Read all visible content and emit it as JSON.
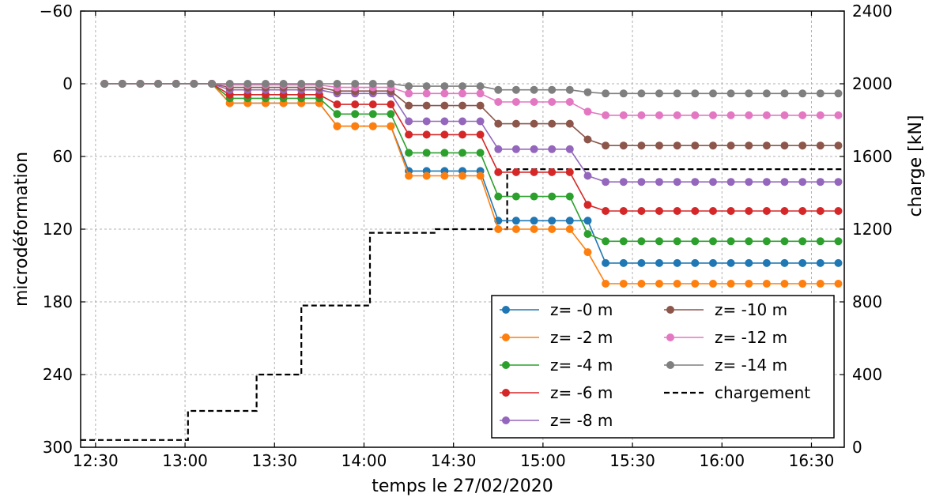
{
  "chart_data": {
    "type": "line",
    "xlabel": "temps le 27/02/2020",
    "ylabel": "microdéformation",
    "ylabel_right": "charge [kN]",
    "x_tick_labels": [
      "12:30",
      "13:00",
      "13:30",
      "14:00",
      "14:30",
      "15:00",
      "15:30",
      "16:00",
      "16:30"
    ],
    "x_tick_minutes": [
      750,
      780,
      810,
      840,
      870,
      900,
      930,
      960,
      990
    ],
    "xlim_minutes": [
      745,
      1001
    ],
    "y_left_ticks": [
      -60,
      0,
      60,
      120,
      180,
      240,
      300
    ],
    "ylim_left": [
      -60,
      300
    ],
    "y_left_inverted": true,
    "y_right_ticks": [
      0,
      400,
      800,
      1200,
      1600,
      2000,
      2400
    ],
    "ylim_right": [
      0,
      2400
    ],
    "grid": true,
    "legend_position": "lower-right",
    "legend_columns": 2,
    "x_minutes": [
      753,
      759,
      765,
      771,
      777,
      783,
      789,
      795,
      801,
      807,
      813,
      819,
      825,
      831,
      837,
      843,
      849,
      855,
      861,
      867,
      873,
      879,
      885,
      891,
      897,
      903,
      909,
      915,
      921,
      927,
      933,
      939,
      945,
      951,
      957,
      963,
      969,
      975,
      981,
      987,
      993,
      999
    ],
    "levels_by_step": {
      "z= -0 m": [
        0,
        16,
        35,
        72,
        113,
        148
      ],
      "z= -2 m": [
        0,
        16,
        35,
        76,
        120,
        165
      ],
      "z= -4 m": [
        0,
        12,
        25,
        57,
        93,
        130
      ],
      "z= -6 m": [
        0,
        9,
        17,
        42,
        73,
        105
      ],
      "z= -8 m": [
        0,
        5,
        8,
        31,
        54,
        81
      ],
      "z= -10 m": [
        0,
        3,
        6,
        18,
        33,
        51
      ],
      "z= -12 m": [
        0,
        1,
        3,
        8,
        15,
        26
      ],
      "z= -14 m": [
        0,
        0,
        0,
        2,
        5,
        8
      ]
    },
    "series": [
      {
        "name": "z= -0 m",
        "color": "#1f77b4",
        "values": [
          0,
          0,
          0,
          0,
          0,
          0,
          0,
          16,
          16,
          16,
          16,
          16,
          16,
          35,
          35,
          35,
          35,
          72,
          72,
          72,
          72,
          72,
          113,
          113,
          113,
          113,
          113,
          113,
          148,
          148,
          148,
          148,
          148,
          148,
          148,
          148,
          148,
          148,
          148,
          148,
          148,
          148
        ]
      },
      {
        "name": "z= -2 m",
        "color": "#ff7f0e",
        "values": [
          0,
          0,
          0,
          0,
          0,
          0,
          0,
          16,
          16,
          16,
          16,
          16,
          16,
          35,
          35,
          35,
          35,
          76,
          76,
          76,
          76,
          76,
          120,
          120,
          120,
          120,
          120,
          139,
          165,
          165,
          165,
          165,
          165,
          165,
          165,
          165,
          165,
          165,
          165,
          165,
          165,
          165
        ]
      },
      {
        "name": "z= -4 m",
        "color": "#2ca02c",
        "values": [
          0,
          0,
          0,
          0,
          0,
          0,
          0,
          12,
          12,
          12,
          12,
          12,
          12,
          25,
          25,
          25,
          25,
          57,
          57,
          57,
          57,
          57,
          93,
          93,
          93,
          93,
          93,
          124,
          130,
          130,
          130,
          130,
          130,
          130,
          130,
          130,
          130,
          130,
          130,
          130,
          130,
          130
        ]
      },
      {
        "name": "z= -6 m",
        "color": "#d62728",
        "values": [
          0,
          0,
          0,
          0,
          0,
          0,
          0,
          9,
          9,
          9,
          9,
          9,
          9,
          17,
          17,
          17,
          17,
          42,
          42,
          42,
          42,
          42,
          73,
          73,
          73,
          73,
          73,
          100,
          105,
          105,
          105,
          105,
          105,
          105,
          105,
          105,
          105,
          105,
          105,
          105,
          105,
          105
        ]
      },
      {
        "name": "z= -8 m",
        "color": "#9467bd",
        "values": [
          0,
          0,
          0,
          0,
          0,
          0,
          0,
          5,
          5,
          5,
          5,
          5,
          5,
          8,
          8,
          8,
          8,
          31,
          31,
          31,
          31,
          31,
          54,
          54,
          54,
          54,
          54,
          76,
          81,
          81,
          81,
          81,
          81,
          81,
          81,
          81,
          81,
          81,
          81,
          81,
          81,
          81
        ]
      },
      {
        "name": "z= -10 m",
        "color": "#8c564b",
        "values": [
          0,
          0,
          0,
          0,
          0,
          0,
          0,
          3,
          3,
          3,
          3,
          3,
          3,
          6,
          6,
          6,
          6,
          18,
          18,
          18,
          18,
          18,
          33,
          33,
          33,
          33,
          33,
          46,
          51,
          51,
          51,
          51,
          51,
          51,
          51,
          51,
          51,
          51,
          51,
          51,
          51,
          51
        ]
      },
      {
        "name": "z= -12 m",
        "color": "#e377c2",
        "values": [
          0,
          0,
          0,
          0,
          0,
          0,
          0,
          1,
          1,
          1,
          1,
          1,
          1,
          3,
          3,
          3,
          3,
          8,
          8,
          8,
          8,
          8,
          15,
          15,
          15,
          15,
          15,
          23,
          26,
          26,
          26,
          26,
          26,
          26,
          26,
          26,
          26,
          26,
          26,
          26,
          26,
          26
        ]
      },
      {
        "name": "z= -14 m",
        "color": "#7f7f7f",
        "values": [
          0,
          0,
          0,
          0,
          0,
          0,
          0,
          0,
          0,
          0,
          0,
          0,
          0,
          0,
          0,
          0,
          0,
          2,
          2,
          2,
          2,
          2,
          5,
          5,
          5,
          5,
          5,
          7,
          8,
          8,
          8,
          8,
          8,
          8,
          8,
          8,
          8,
          8,
          8,
          8,
          8,
          8
        ]
      }
    ],
    "load": {
      "name": "chargement",
      "color": "#000000",
      "x_minutes": [
        745,
        781,
        781,
        804,
        804,
        819,
        819,
        842,
        842,
        864,
        864,
        888,
        888,
        1001
      ],
      "values": [
        40,
        40,
        200,
        200,
        400,
        400,
        780,
        780,
        1180,
        1180,
        1200,
        1200,
        1530,
        1530
      ]
    }
  }
}
